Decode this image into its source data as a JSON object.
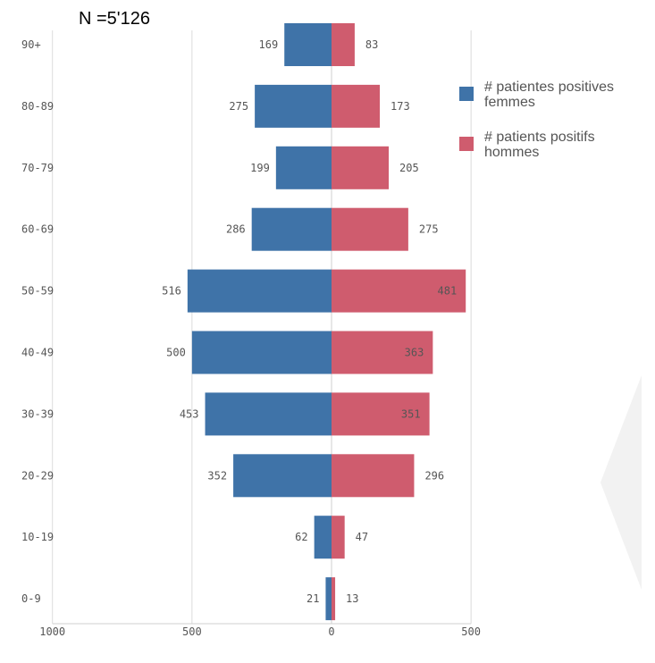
{
  "header": {
    "n_label": "N =5'126"
  },
  "chart_data": {
    "type": "bar",
    "orientation": "horizontal-population-pyramid",
    "categories": [
      "90+",
      "80-89",
      "70-79",
      "60-69",
      "50-59",
      "40-49",
      "30-39",
      "20-29",
      "10-19",
      "0-9"
    ],
    "series": [
      {
        "name": "# patientes positives femmes",
        "label_lines": [
          "# patientes positives",
          "femmes"
        ],
        "color": "#3f73a8",
        "side": "left",
        "values": [
          169,
          275,
          199,
          286,
          516,
          500,
          453,
          352,
          62,
          21
        ]
      },
      {
        "name": "# patients positifs hommes",
        "label_lines": [
          "# patients positifs",
          "hommes"
        ],
        "color": "#cf5c6e",
        "side": "right",
        "values": [
          83,
          173,
          205,
          275,
          481,
          363,
          351,
          296,
          47,
          13
        ]
      }
    ],
    "xlim": [
      -1000,
      500
    ],
    "x_ticks": [
      -1000,
      -500,
      0,
      500
    ],
    "x_tick_labels": [
      "1000",
      "500",
      "0",
      "500"
    ],
    "grid": "vertical",
    "legend": "top-right"
  },
  "colors": {
    "axis": "#cfcfcf",
    "grid": "#dcdcdc",
    "label": "#555555",
    "title": "#000000",
    "watermark": "#f2f2f2"
  }
}
